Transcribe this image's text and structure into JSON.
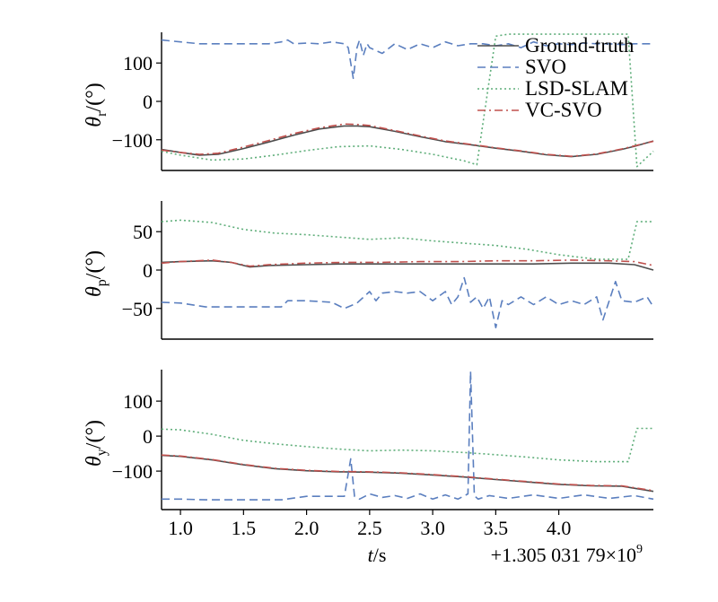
{
  "colors": {
    "ground_truth": "#4d4d4d",
    "svo": "#5b7fbf",
    "lsd_slam": "#5fae7a",
    "vc_svo": "#c0504d"
  },
  "chart_data": [
    {
      "type": "line",
      "panel": "roll",
      "ylabel_main": "θ",
      "ylabel_sub": "r",
      "ylabel_unit": "/(°)",
      "ylim": [
        -180,
        180
      ],
      "yticks": [
        100,
        0,
        -100
      ],
      "ytick_labels": [
        "100",
        "0",
        "−100"
      ],
      "legend": [
        "Ground-truth",
        "SVO",
        "LSD-SLAM",
        "VC-SVO"
      ],
      "legend_position": "top-right",
      "series": [
        {
          "name": "Ground-truth",
          "style": "solid",
          "color_key": "ground_truth",
          "x": [
            0.85,
            1.0,
            1.15,
            1.3,
            1.5,
            1.7,
            1.9,
            2.1,
            2.3,
            2.4,
            2.5,
            2.7,
            2.9,
            3.1,
            3.3,
            3.5,
            3.7,
            3.9,
            4.1,
            4.3,
            4.5,
            4.6,
            4.75
          ],
          "y": [
            -125,
            -133,
            -140,
            -138,
            -123,
            -106,
            -88,
            -72,
            -64,
            -64,
            -66,
            -78,
            -92,
            -105,
            -113,
            -122,
            -130,
            -139,
            -144,
            -138,
            -125,
            -117,
            -103
          ]
        },
        {
          "name": "SVO",
          "style": "dashed",
          "color_key": "svo",
          "x": [
            0.85,
            1.0,
            1.15,
            1.3,
            1.5,
            1.7,
            1.8,
            1.85,
            1.9,
            2.0,
            2.1,
            2.2,
            2.3,
            2.33,
            2.35,
            2.37,
            2.4,
            2.42,
            2.45,
            2.48,
            2.5,
            2.6,
            2.7,
            2.8,
            2.9,
            3.0,
            3.1,
            3.2,
            3.3,
            3.4,
            3.5,
            3.6,
            3.7,
            3.8,
            3.9,
            4.0,
            4.1,
            4.2,
            4.3,
            4.4,
            4.5,
            4.6,
            4.75
          ],
          "y": [
            160,
            155,
            150,
            150,
            150,
            150,
            155,
            160,
            150,
            152,
            150,
            155,
            150,
            140,
            100,
            60,
            140,
            160,
            120,
            150,
            140,
            125,
            150,
            135,
            150,
            140,
            155,
            145,
            150,
            150,
            145,
            150,
            140,
            155,
            145,
            150,
            148,
            152,
            150,
            150,
            148,
            150,
            150
          ]
        },
        {
          "name": "LSD-SLAM",
          "style": "dotted",
          "color_key": "lsd_slam",
          "x": [
            0.85,
            1.0,
            1.25,
            1.5,
            1.75,
            2.0,
            2.25,
            2.5,
            2.75,
            3.0,
            3.25,
            3.35,
            3.5,
            3.6,
            3.75,
            4.0,
            4.3,
            4.5,
            4.55,
            4.62,
            4.75
          ],
          "y": [
            -130,
            -140,
            -153,
            -150,
            -140,
            -128,
            -118,
            -116,
            -125,
            -138,
            -155,
            -165,
            170,
            175,
            175,
            175,
            175,
            175,
            175,
            -170,
            -130
          ]
        },
        {
          "name": "VC-SVO",
          "style": "dashdot",
          "color_key": "vc_svo",
          "x": [
            0.85,
            1.0,
            1.15,
            1.3,
            1.5,
            1.7,
            1.9,
            2.1,
            2.3,
            2.4,
            2.5,
            2.7,
            2.9,
            3.1,
            3.3,
            3.5,
            3.7,
            3.9,
            4.1,
            4.3,
            4.5,
            4.6,
            4.75
          ],
          "y": [
            -127,
            -133,
            -138,
            -135,
            -119,
            -102,
            -84,
            -69,
            -59,
            -60,
            -63,
            -76,
            -90,
            -103,
            -112,
            -121,
            -129,
            -138,
            -143,
            -137,
            -124,
            -116,
            -104
          ]
        }
      ]
    },
    {
      "type": "line",
      "panel": "pitch",
      "ylabel_main": "θ",
      "ylabel_sub": "p",
      "ylabel_unit": "/(°)",
      "ylim": [
        -90,
        90
      ],
      "yticks": [
        50,
        0,
        -50
      ],
      "ytick_labels": [
        "50",
        "0",
        "−50"
      ],
      "series": [
        {
          "name": "Ground-truth",
          "style": "solid",
          "color_key": "ground_truth",
          "x": [
            0.85,
            1.0,
            1.25,
            1.4,
            1.55,
            1.7,
            2.0,
            2.3,
            2.6,
            2.9,
            3.2,
            3.5,
            3.8,
            4.1,
            4.4,
            4.6,
            4.75
          ],
          "y": [
            10,
            11,
            12,
            10,
            4,
            6,
            7,
            8,
            8,
            8,
            8,
            8,
            8,
            9,
            9,
            7,
            0
          ]
        },
        {
          "name": "SVO",
          "style": "dashed",
          "color_key": "svo",
          "x": [
            0.85,
            1.0,
            1.2,
            1.5,
            1.8,
            1.85,
            2.0,
            2.2,
            2.3,
            2.4,
            2.5,
            2.55,
            2.6,
            2.7,
            2.8,
            2.9,
            3.0,
            3.1,
            3.15,
            3.2,
            3.25,
            3.3,
            3.35,
            3.4,
            3.45,
            3.5,
            3.55,
            3.6,
            3.7,
            3.8,
            3.9,
            4.0,
            4.1,
            4.2,
            4.3,
            4.35,
            4.4,
            4.45,
            4.5,
            4.6,
            4.7,
            4.75
          ],
          "y": [
            -42,
            -43,
            -48,
            -48,
            -48,
            -40,
            -40,
            -42,
            -50,
            -43,
            -28,
            -40,
            -30,
            -28,
            -30,
            -28,
            -40,
            -28,
            -45,
            -35,
            -10,
            -42,
            -35,
            -50,
            -35,
            -75,
            -40,
            -45,
            -35,
            -45,
            -35,
            -45,
            -40,
            -45,
            -35,
            -65,
            -40,
            -15,
            -40,
            -42,
            -35,
            -48
          ]
        },
        {
          "name": "LSD-SLAM",
          "style": "dotted",
          "color_key": "lsd_slam",
          "x": [
            0.85,
            1.0,
            1.25,
            1.5,
            1.75,
            2.0,
            2.25,
            2.5,
            2.75,
            3.0,
            3.25,
            3.5,
            3.75,
            4.0,
            4.3,
            4.5,
            4.55,
            4.62,
            4.75
          ],
          "y": [
            63,
            65,
            62,
            53,
            48,
            46,
            43,
            40,
            42,
            38,
            35,
            32,
            27,
            20,
            14,
            14,
            14,
            63,
            63
          ]
        },
        {
          "name": "VC-SVO",
          "style": "dashdot",
          "color_key": "vc_svo",
          "x": [
            0.85,
            1.0,
            1.25,
            1.4,
            1.55,
            1.7,
            2.0,
            2.3,
            2.6,
            2.9,
            3.2,
            3.5,
            3.8,
            4.1,
            4.4,
            4.6,
            4.75
          ],
          "y": [
            9,
            11,
            13,
            10,
            5,
            7,
            9,
            10,
            10,
            11,
            11,
            12,
            12,
            13,
            12,
            11,
            6
          ]
        }
      ]
    },
    {
      "type": "line",
      "panel": "yaw",
      "ylabel_main": "θ",
      "ylabel_sub": "y",
      "ylabel_unit": "/(°)",
      "ylim": [
        -210,
        190
      ],
      "yticks": [
        100,
        0,
        -100
      ],
      "ytick_labels": [
        "100",
        "0",
        "−100"
      ],
      "xlim": [
        0.85,
        4.75
      ],
      "xticks": [
        1.0,
        1.5,
        2.0,
        2.5,
        3.0,
        3.5,
        4.0
      ],
      "xtick_labels": [
        "1.0",
        "1.5",
        "2.0",
        "2.5",
        "3.0",
        "3.5",
        "4.0"
      ],
      "xlabel_main": "t",
      "xlabel_unit": "/s",
      "offset_label": "+1.305 031 79×10",
      "offset_exponent": "9",
      "series": [
        {
          "name": "Ground-truth",
          "style": "solid",
          "color_key": "ground_truth",
          "x": [
            0.85,
            1.0,
            1.25,
            1.5,
            1.75,
            2.0,
            2.25,
            2.5,
            2.75,
            3.0,
            3.25,
            3.5,
            3.75,
            4.0,
            4.25,
            4.5,
            4.75
          ],
          "y": [
            -55,
            -58,
            -68,
            -82,
            -93,
            -99,
            -102,
            -103,
            -106,
            -111,
            -117,
            -124,
            -131,
            -138,
            -142,
            -143,
            -158
          ]
        },
        {
          "name": "SVO",
          "style": "dashed",
          "color_key": "svo",
          "x": [
            0.85,
            1.0,
            1.2,
            1.5,
            1.8,
            2.0,
            2.3,
            2.35,
            2.38,
            2.42,
            2.5,
            2.6,
            2.7,
            2.8,
            2.9,
            3.0,
            3.1,
            3.2,
            3.28,
            3.3,
            3.33,
            3.36,
            3.45,
            3.6,
            3.8,
            4.0,
            4.2,
            4.4,
            4.6,
            4.75
          ],
          "y": [
            -180,
            -180,
            -182,
            -182,
            -182,
            -172,
            -172,
            -65,
            -172,
            -180,
            -165,
            -175,
            -170,
            -178,
            -165,
            -180,
            -168,
            -180,
            -165,
            185,
            -170,
            -180,
            -170,
            -178,
            -168,
            -178,
            -168,
            -178,
            -170,
            -180
          ]
        },
        {
          "name": "LSD-SLAM",
          "style": "dotted",
          "color_key": "lsd_slam",
          "x": [
            0.85,
            1.0,
            1.25,
            1.5,
            1.75,
            2.0,
            2.25,
            2.5,
            2.75,
            3.0,
            3.25,
            3.5,
            3.75,
            4.0,
            4.3,
            4.5,
            4.55,
            4.62,
            4.75
          ],
          "y": [
            20,
            18,
            5,
            -12,
            -22,
            -30,
            -37,
            -42,
            -40,
            -42,
            -47,
            -53,
            -60,
            -68,
            -73,
            -73,
            -73,
            22,
            22
          ]
        },
        {
          "name": "VC-SVO",
          "style": "dashdot",
          "color_key": "vc_svo",
          "x": [
            0.85,
            1.0,
            1.25,
            1.5,
            1.75,
            2.0,
            2.25,
            2.5,
            2.75,
            3.0,
            3.25,
            3.5,
            3.75,
            4.0,
            4.25,
            4.5,
            4.75
          ],
          "y": [
            -54,
            -57,
            -67,
            -81,
            -92,
            -98,
            -101,
            -102,
            -105,
            -110,
            -116,
            -123,
            -130,
            -137,
            -141,
            -142,
            -156
          ]
        }
      ]
    }
  ]
}
